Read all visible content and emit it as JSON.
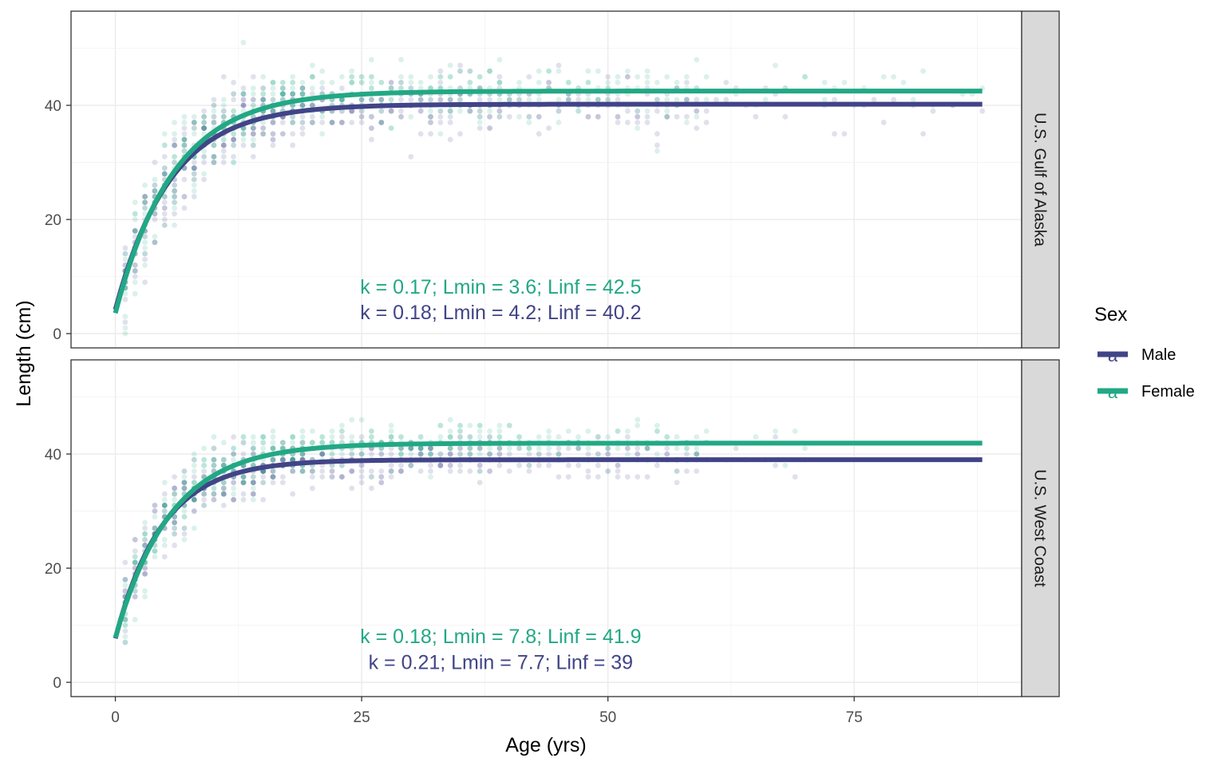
{
  "chart_data": {
    "type": "scatter",
    "xlabel": "Age (yrs)",
    "ylabel": "Length (cm)",
    "xlim": [
      -4.5,
      92
    ],
    "ylim": [
      -2.5,
      56.5
    ],
    "x_ticks": [
      0,
      25,
      50,
      75
    ],
    "y_ticks": [
      0,
      20,
      40
    ],
    "grid": true,
    "legend": {
      "title": "Sex",
      "placement": "right",
      "entries": [
        {
          "name": "Male",
          "color": "#414487"
        },
        {
          "name": "Female",
          "color": "#22A884"
        }
      ],
      "key_glyph": "a"
    },
    "panels": [
      {
        "strip_label": "U.S. Gulf of Alaska",
        "annotations": [
          {
            "text": "k = 0.17; Lmin = 3.6; Linf = 42.5",
            "sex": "Female",
            "x": 37.5,
            "y": 8.3
          },
          {
            "text": "k = 0.18; Lmin = 4.2; Linf = 40.2",
            "sex": "Male",
            "x": 37.5,
            "y": 3.8
          }
        ],
        "curves": [
          {
            "sex": "Male",
            "k": 0.18,
            "Lmin": 4.2,
            "Linf": 40.2,
            "x_range": [
              0,
              88
            ]
          },
          {
            "sex": "Female",
            "k": 0.17,
            "Lmin": 3.6,
            "Linf": 42.5,
            "x_range": [
              0,
              88
            ]
          }
        ],
        "points": {
          "Male": {
            "age_max": 88,
            "length_spread_young": 6,
            "length_spread_old": 4,
            "max_length": 54
          },
          "Female": {
            "age_max": 88,
            "length_spread_young": 6,
            "length_spread_old": 4,
            "max_length": 52
          }
        }
      },
      {
        "strip_label": "U.S. West Coast",
        "annotations": [
          {
            "text": "k = 0.18; Lmin = 7.8; Linf = 41.9",
            "sex": "Female",
            "x": 37.5,
            "y": 8.1
          },
          {
            "text": "k = 0.21; Lmin = 7.7; Linf = 39",
            "sex": "Male",
            "x": 37.5,
            "y": 3.6
          }
        ],
        "curves": [
          {
            "sex": "Male",
            "k": 0.21,
            "Lmin": 7.7,
            "Linf": 39,
            "x_range": [
              0,
              88
            ]
          },
          {
            "sex": "Female",
            "k": 0.18,
            "Lmin": 7.8,
            "Linf": 41.9,
            "x_range": [
              0,
              88
            ]
          }
        ],
        "points": {
          "Male": {
            "age_max": 70,
            "length_spread_young": 5,
            "length_spread_old": 3,
            "max_length": 47
          },
          "Female": {
            "age_max": 70,
            "length_spread_young": 5,
            "length_spread_old": 3,
            "max_length": 49
          }
        }
      }
    ]
  }
}
